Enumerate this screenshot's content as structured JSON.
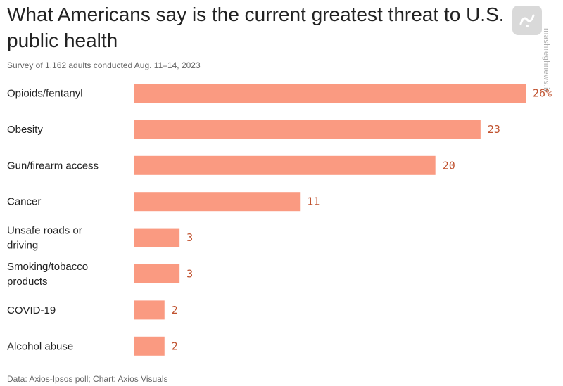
{
  "chart_data": {
    "type": "bar",
    "orientation": "horizontal",
    "title": "What Americans say is the current greatest threat to U.S. public health",
    "subtitle": "Survey of 1,162 adults conducted Aug. 11–14, 2023",
    "source": "Data: Axios-Ipsos poll; Chart: Axios Visuals",
    "categories": [
      [
        "Opioids/fentanyl"
      ],
      [
        "Obesity"
      ],
      [
        "Gun/firearm access"
      ],
      [
        "Cancer"
      ],
      [
        "Unsafe roads or",
        "driving"
      ],
      [
        "Smoking/tobacco",
        "products"
      ],
      [
        "COVID-19"
      ],
      [
        "Alcohol abuse"
      ]
    ],
    "values": [
      26,
      23,
      20,
      11,
      3,
      3,
      2,
      2
    ],
    "value_labels": [
      "26%",
      "23",
      "20",
      "11",
      "3",
      "3",
      "2",
      "2"
    ],
    "xlim": [
      0,
      26
    ],
    "bar_color": "#fa9a81",
    "value_label_color": "#c0522f"
  },
  "watermark": {
    "text": "mashreghnews.ir",
    "color": "#8a8a8a"
  }
}
